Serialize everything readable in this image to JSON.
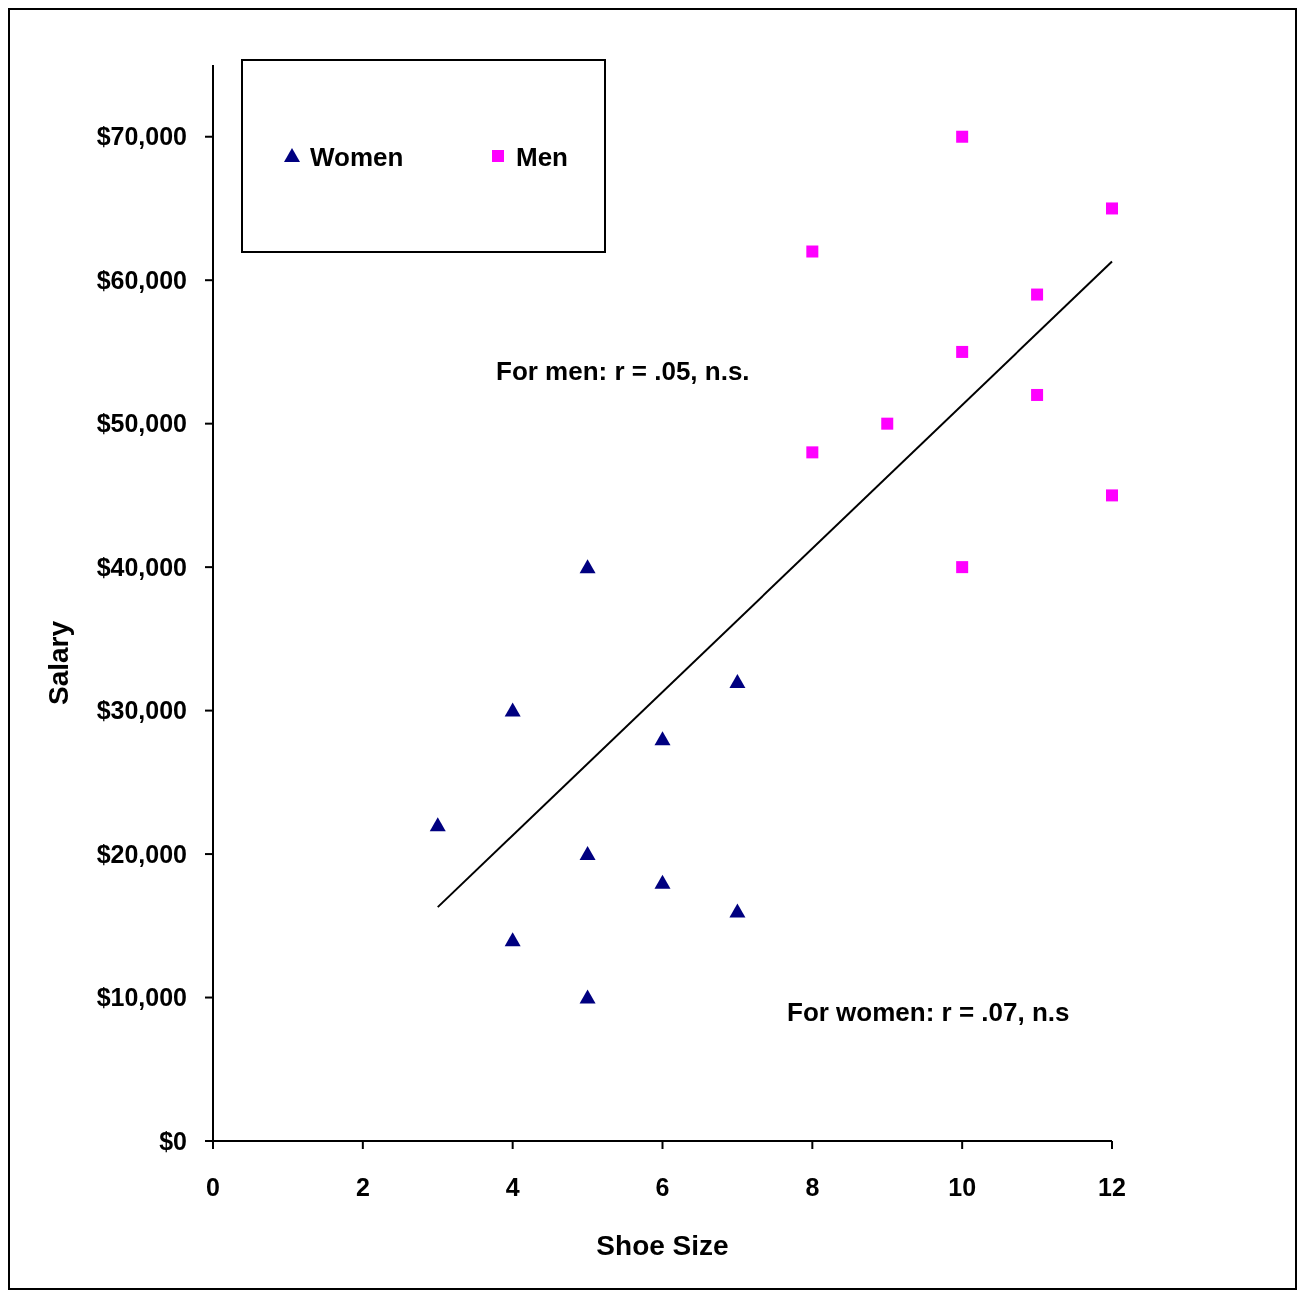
{
  "chart_data": {
    "type": "scatter",
    "xlabel": "Shoe Size",
    "ylabel": "Salary",
    "xlim": [
      0,
      12
    ],
    "ylim": [
      0,
      75000
    ],
    "xticks": [
      0,
      2,
      4,
      6,
      8,
      10,
      12
    ],
    "yticks": [
      {
        "value": 0,
        "label": "$0"
      },
      {
        "value": 10000,
        "label": "$10,000"
      },
      {
        "value": 20000,
        "label": "$20,000"
      },
      {
        "value": 30000,
        "label": "$30,000"
      },
      {
        "value": 40000,
        "label": "$40,000"
      },
      {
        "value": 50000,
        "label": "$50,000"
      },
      {
        "value": 60000,
        "label": "$60,000"
      },
      {
        "value": 70000,
        "label": "$70,000"
      }
    ],
    "grid": false,
    "legend": "top left",
    "series": [
      {
        "name": "Women",
        "color": "#000080",
        "marker": "triangle",
        "x": [
          3,
          4,
          4,
          5,
          5,
          5,
          6,
          6,
          7,
          7
        ],
        "values": [
          22000,
          30000,
          14000,
          40000,
          20000,
          10000,
          28000,
          18000,
          32000,
          16000
        ]
      },
      {
        "name": "Men",
        "color": "#ff00ff",
        "marker": "square",
        "x": [
          8,
          8,
          9,
          10,
          10,
          10,
          11,
          11,
          12,
          12
        ],
        "values": [
          62000,
          48000,
          50000,
          70000,
          55000,
          40000,
          59000,
          52000,
          65000,
          45000
        ]
      },
      {
        "type": "line",
        "color": "#000000",
        "marker": "none",
        "x": [
          3,
          12
        ],
        "values": [
          16300,
          61300
        ]
      }
    ],
    "annotations": [
      "For men: r = .05, n.s.",
      "For women: r = .07, n.s"
    ]
  }
}
